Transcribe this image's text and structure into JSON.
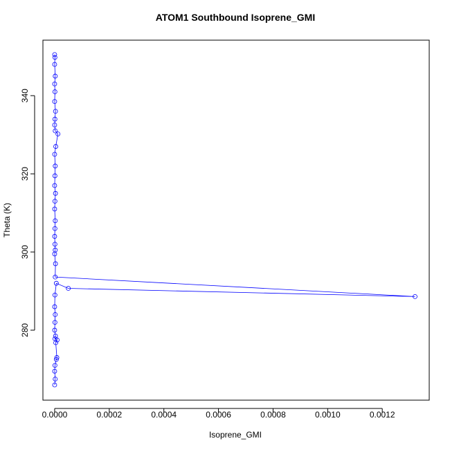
{
  "chart_data": {
    "type": "line",
    "title": "ATOM1 Southbound Isoprene_GMI",
    "x_label": "Isoprene_GMI",
    "y_label": "Theta (K)",
    "color": "#0000ff",
    "x": [
      0,
      1e-06,
      0,
      2e-06,
      0,
      1e-06,
      0,
      3e-06,
      1e-06,
      0,
      2e-06,
      1.2e-05,
      4e-06,
      0,
      2e-06,
      1e-06,
      0,
      3e-06,
      1e-06,
      0,
      2e-06,
      1e-06,
      0,
      1e-06,
      2e-06,
      0,
      3e-06,
      2e-06,
      0.00132,
      5e-05,
      6e-06,
      1e-06,
      0,
      2e-06,
      1e-06,
      0,
      3e-06,
      1e-06,
      9e-06,
      4e-06,
      8e-06,
      6e-06,
      1e-06,
      0,
      2e-06,
      0
    ],
    "values": [
      350.5,
      349.8,
      348,
      345,
      343,
      341,
      338.5,
      336,
      334,
      332.5,
      331,
      330.2,
      327,
      325,
      322,
      319.5,
      317,
      315,
      313,
      311,
      308,
      306,
      304,
      302,
      300.5,
      299.5,
      297,
      293.6,
      288.6,
      290.7,
      292,
      289,
      286,
      284,
      282,
      280,
      278.5,
      277.8,
      277.5,
      276.8,
      273,
      272.5,
      271,
      269.5,
      267.5,
      266
    ],
    "xlim": [
      -4.3e-05,
      0.001372
    ],
    "ylim": [
      262.1,
      354.2
    ],
    "xticks": [
      {
        "value": 0,
        "label": "0.0000"
      },
      {
        "value": 0.0002,
        "label": "0.0002"
      },
      {
        "value": 0.0004,
        "label": "0.0004"
      },
      {
        "value": 0.0006,
        "label": "0.0006"
      },
      {
        "value": 0.0008,
        "label": "0.0008"
      },
      {
        "value": 0.001,
        "label": "0.0010"
      },
      {
        "value": 0.0012,
        "label": "0.0012"
      }
    ],
    "yticks": [
      280,
      300,
      320,
      340
    ]
  }
}
